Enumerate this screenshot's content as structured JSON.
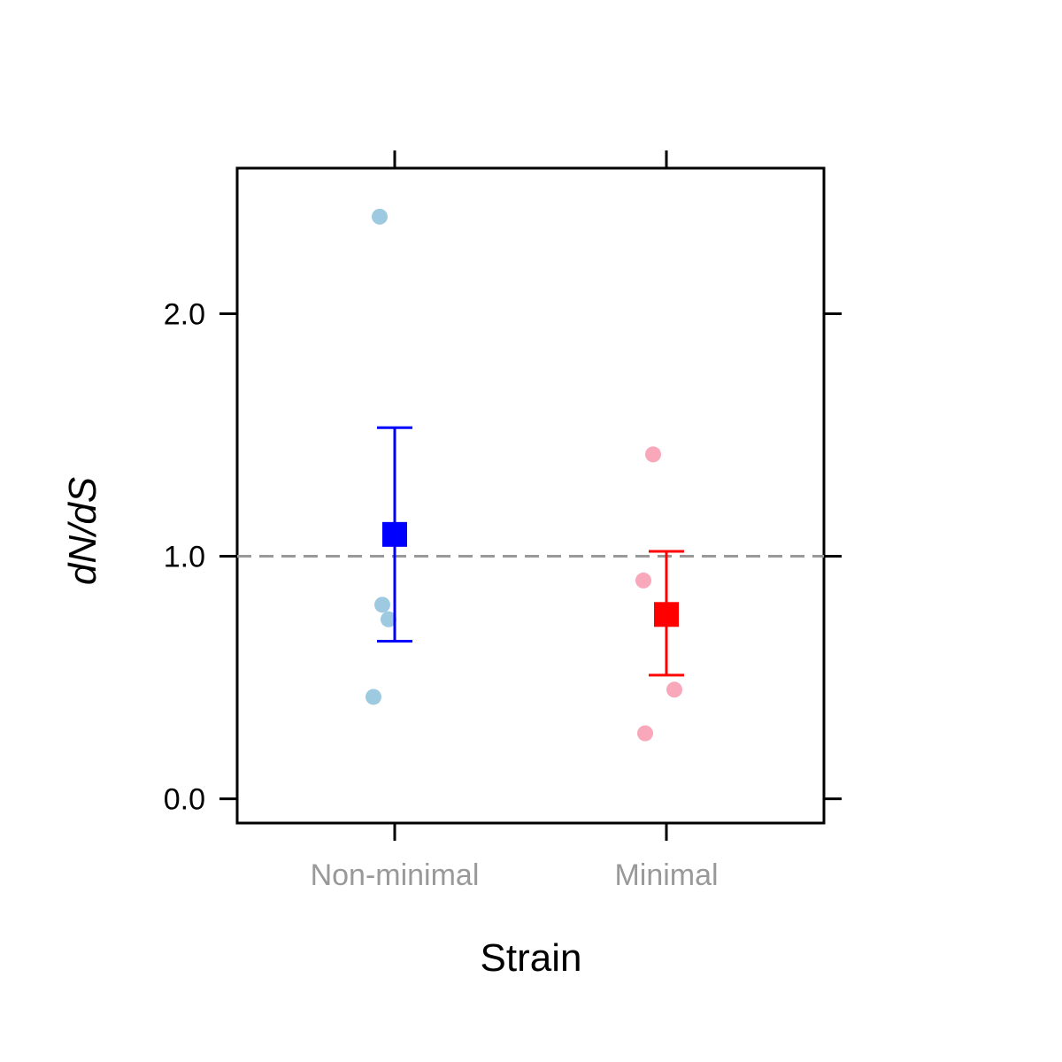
{
  "chart_data": {
    "type": "scatter",
    "xlabel": "Strain",
    "ylabel": "dN/dS",
    "ylim": [
      -0.1,
      2.6
    ],
    "yticks": [
      "0.0",
      "1.0",
      "2.0"
    ],
    "reference_line": {
      "y": 1.0,
      "style": "dashed",
      "color": "#999999"
    },
    "categories": [
      "Non-minimal",
      "Minimal"
    ],
    "groups": [
      {
        "category": "Non-minimal",
        "point_color": "#9ecae1",
        "summary_color": "#0000ff",
        "points": [
          2.4,
          0.8,
          0.74,
          0.42
        ],
        "mean": 1.09,
        "ci_low": 0.65,
        "ci_high": 1.53
      },
      {
        "category": "Minimal",
        "point_color": "#f8a8ba",
        "summary_color": "#ff0000",
        "points": [
          1.42,
          0.9,
          0.45,
          0.27
        ],
        "mean": 0.76,
        "ci_low": 0.51,
        "ci_high": 1.02
      }
    ],
    "grid": false,
    "legend": "none"
  }
}
